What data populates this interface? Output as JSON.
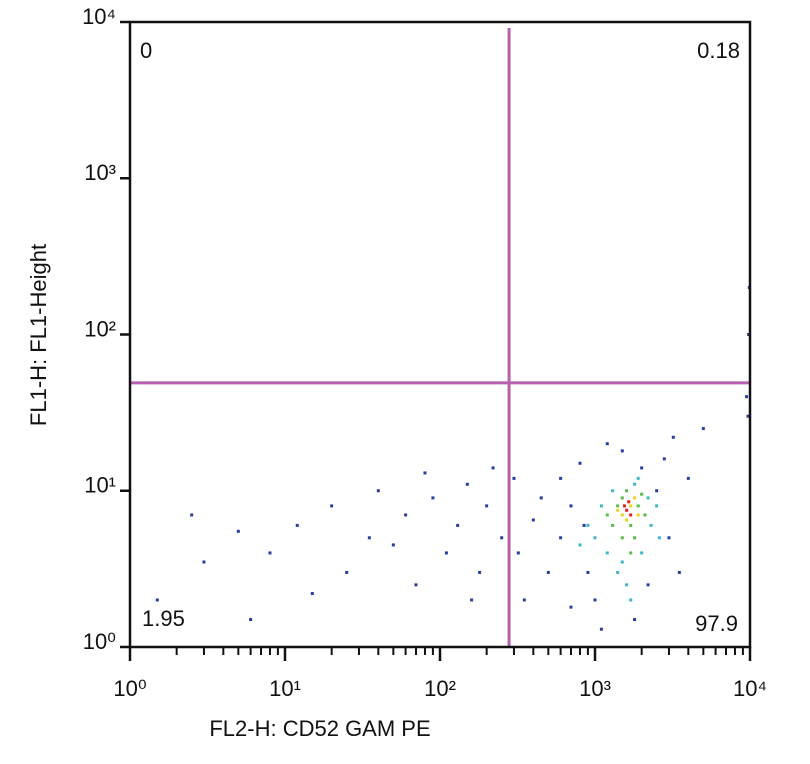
{
  "chart_data": {
    "type": "scatter",
    "x_label": "FL2-H: CD52 GAM PE",
    "y_label": "FL1-H:   FL1-Height",
    "xscale": "log",
    "yscale": "log",
    "xlim": [
      1,
      10000
    ],
    "ylim": [
      1,
      10000
    ],
    "xticks": [
      {
        "value": 1,
        "label": "10⁰"
      },
      {
        "value": 10,
        "label": "10¹"
      },
      {
        "value": 100,
        "label": "10²"
      },
      {
        "value": 1000,
        "label": "10³"
      },
      {
        "value": 10000,
        "label": "10⁴"
      }
    ],
    "yticks": [
      {
        "value": 1,
        "label": "10⁰"
      },
      {
        "value": 10,
        "label": "10¹"
      },
      {
        "value": 100,
        "label": "10²"
      },
      {
        "value": 1000,
        "label": "10³"
      },
      {
        "value": 10000,
        "label": "10⁴"
      }
    ],
    "xminorticks": [
      2,
      3,
      4,
      5,
      6,
      7,
      8,
      9,
      20,
      30,
      40,
      50,
      60,
      70,
      80,
      90,
      200,
      300,
      400,
      500,
      600,
      700,
      800,
      900,
      2000,
      3000,
      4000,
      5000,
      6000,
      7000,
      8000,
      9000
    ],
    "gate_x": 279,
    "gate_y": 49,
    "gate_color": "#b65fae",
    "quadrant_values": [
      0,
      0.18,
      1.95,
      97.9
    ],
    "series": [
      {
        "color": "#2a3c9c",
        "x": [
          5,
          3,
          8,
          12,
          20,
          25,
          40,
          35,
          60,
          70,
          90,
          110,
          130,
          150,
          180,
          200,
          250,
          300,
          350,
          400,
          1.5,
          2.5,
          6,
          15,
          50,
          80,
          160,
          220,
          320,
          450,
          500,
          600,
          700,
          800,
          1000,
          1200,
          1500,
          2000,
          2500,
          3000,
          3500,
          900,
          1100,
          1800,
          2200,
          4000,
          5000,
          2800,
          600,
          700,
          850,
          9500,
          9800,
          9900,
          9700,
          3200
        ],
        "y": [
          5.5,
          3.5,
          4,
          6,
          8,
          3,
          10,
          5,
          7,
          2.5,
          9,
          4,
          6,
          11,
          3,
          8,
          5,
          12,
          2,
          6.5,
          2,
          7,
          1.5,
          2.2,
          4.5,
          13,
          2,
          14,
          4,
          9,
          3,
          12,
          1.8,
          15,
          2,
          20,
          18,
          14,
          10,
          5,
          3,
          3,
          1.3,
          1.5,
          2.5,
          12,
          25,
          16,
          5,
          8,
          6,
          40,
          100,
          200,
          30,
          22
        ]
      },
      {
        "color": "#3cb6c6",
        "x": [
          1000,
          1200,
          1400,
          1600,
          2000,
          2300,
          2500,
          1100,
          900,
          1300,
          1800,
          2200,
          1500,
          1700,
          2600,
          800,
          1900
        ],
        "y": [
          5,
          4,
          3,
          2.5,
          4,
          6,
          8,
          8,
          6,
          10,
          11,
          9,
          3.5,
          2,
          5,
          4.5,
          12
        ]
      },
      {
        "color": "#58bd48",
        "x": [
          1300,
          1500,
          1700,
          1900,
          2100,
          1400,
          1600,
          1200,
          1800,
          2000,
          1500,
          1700
        ],
        "y": [
          6,
          5,
          6,
          8,
          7,
          8,
          10,
          7,
          5,
          9.5,
          9,
          4
        ]
      },
      {
        "color": "#e6d41e",
        "x": [
          1500,
          1700,
          1800,
          1600,
          1400,
          1900
        ],
        "y": [
          7,
          8,
          9,
          6.5,
          7.5,
          7
        ]
      },
      {
        "color": "#e02020",
        "x": [
          1600,
          1700,
          1650,
          1550
        ],
        "y": [
          7.5,
          7,
          8.5,
          8
        ]
      }
    ]
  }
}
